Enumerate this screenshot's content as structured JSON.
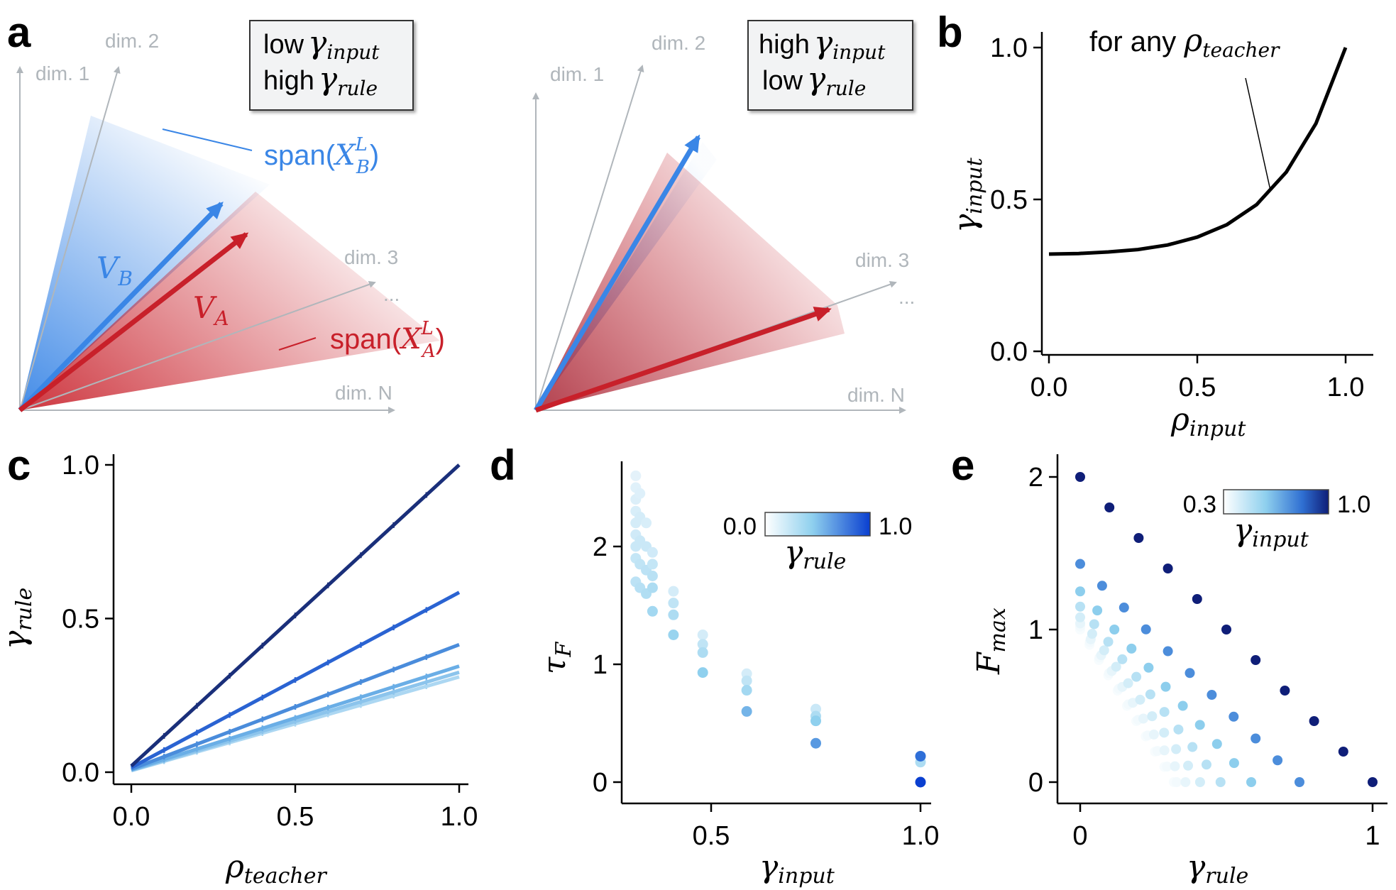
{
  "panel_a": {
    "letter": "a",
    "left_box": {
      "line1": "low",
      "line1_sym": "γ",
      "line1_sub": "input",
      "line2": "high",
      "line2_sym": "γ",
      "line2_sub": "rule"
    },
    "right_box": {
      "line1": "high",
      "line1_sym": "γ",
      "line1_sub": "input",
      "line2": "low",
      "line2_sym": "γ",
      "line2_sub": "rule"
    },
    "dims": {
      "d1": "dim. 1",
      "d2": "dim. 2",
      "d3": "dim. 3",
      "dn": "dim. N",
      "ellipsis": "..."
    },
    "vb_label": "V",
    "vb_sub": "B",
    "va_label": "V",
    "va_sub": "A",
    "span_b": {
      "pre": "span(",
      "sym": "X",
      "sup": "L",
      "sub": "B",
      "post": ")"
    },
    "span_a": {
      "pre": "span(",
      "sym": "X",
      "sup": "L",
      "sub": "A",
      "post": ")"
    },
    "colors": {
      "blue": "#3a86e6",
      "red": "#c8202a",
      "grey_axis": "#b0b6bb"
    }
  },
  "chart_data": [
    {
      "panel": "b",
      "type": "line",
      "xlabel_sym": "ρ",
      "xlabel_sub": "input",
      "ylabel_sym": "γ",
      "ylabel_sub": "input",
      "annotation_pre": "for any ",
      "annotation_sym": "ρ",
      "annotation_sub": "teacher",
      "xlim": [
        0,
        1
      ],
      "ylim": [
        0,
        1
      ],
      "xticks": [
        "0.0",
        "0.5",
        "1.0"
      ],
      "yticks": [
        "0.0",
        "0.5",
        "1.0"
      ],
      "x": [
        0.0,
        0.1,
        0.2,
        0.3,
        0.4,
        0.5,
        0.6,
        0.7,
        0.8,
        0.9,
        1.0
      ],
      "y": [
        0.32,
        0.322,
        0.327,
        0.335,
        0.35,
        0.376,
        0.417,
        0.483,
        0.59,
        0.75,
        1.0
      ],
      "color": "#000000"
    },
    {
      "panel": "c",
      "type": "line",
      "xlabel_sym": "ρ",
      "xlabel_sub": "teacher",
      "ylabel_sym": "γ",
      "ylabel_sub": "rule",
      "xlim": [
        0,
        1
      ],
      "ylim": [
        0,
        1
      ],
      "xticks": [
        "0.0",
        "0.5",
        "1.0"
      ],
      "yticks": [
        "0.0",
        "0.5",
        "1.0"
      ],
      "x": [
        0,
        1
      ],
      "series": [
        {
          "values": [
            0.02,
            1.0
          ],
          "color": "#1a2f7a"
        },
        {
          "values": [
            0.015,
            0.585
          ],
          "color": "#2a63d2"
        },
        {
          "values": [
            0.01,
            0.415
          ],
          "color": "#4a8cdb"
        },
        {
          "values": [
            0.008,
            0.345
          ],
          "color": "#6aaee6"
        },
        {
          "values": [
            0.006,
            0.325
          ],
          "color": "#8cc4ec"
        },
        {
          "values": [
            0.005,
            0.31
          ],
          "color": "#acd7f2"
        }
      ]
    },
    {
      "panel": "d",
      "type": "scatter",
      "xlabel_sym": "γ",
      "xlabel_sub": "input",
      "ylabel_sym": "τ",
      "ylabel_sub": "F",
      "xlim": [
        0.3,
        1.0
      ],
      "ylim": [
        0,
        2.6
      ],
      "xticks": [
        "0.5",
        "1.0"
      ],
      "yticks": [
        "0",
        "1",
        "2"
      ],
      "colorbar": {
        "min_label": "0.0",
        "max_label": "1.0",
        "label_sym": "γ",
        "label_sub": "rule"
      },
      "points": [
        {
          "x": 0.32,
          "y": 2.6,
          "c": 0.02
        },
        {
          "x": 0.32,
          "y": 2.5,
          "c": 0.04
        },
        {
          "x": 0.32,
          "y": 2.4,
          "c": 0.06
        },
        {
          "x": 0.32,
          "y": 2.3,
          "c": 0.08
        },
        {
          "x": 0.32,
          "y": 2.2,
          "c": 0.1
        },
        {
          "x": 0.32,
          "y": 2.1,
          "c": 0.12
        },
        {
          "x": 0.32,
          "y": 2.0,
          "c": 0.15
        },
        {
          "x": 0.32,
          "y": 1.9,
          "c": 0.18
        },
        {
          "x": 0.32,
          "y": 1.7,
          "c": 0.22
        },
        {
          "x": 0.33,
          "y": 2.45,
          "c": 0.05
        },
        {
          "x": 0.33,
          "y": 2.25,
          "c": 0.1
        },
        {
          "x": 0.33,
          "y": 2.05,
          "c": 0.15
        },
        {
          "x": 0.33,
          "y": 1.85,
          "c": 0.2
        },
        {
          "x": 0.33,
          "y": 1.65,
          "c": 0.25
        },
        {
          "x": 0.345,
          "y": 2.2,
          "c": 0.08
        },
        {
          "x": 0.345,
          "y": 2.0,
          "c": 0.15
        },
        {
          "x": 0.345,
          "y": 1.8,
          "c": 0.22
        },
        {
          "x": 0.345,
          "y": 1.6,
          "c": 0.28
        },
        {
          "x": 0.36,
          "y": 1.95,
          "c": 0.12
        },
        {
          "x": 0.36,
          "y": 1.85,
          "c": 0.18
        },
        {
          "x": 0.36,
          "y": 1.75,
          "c": 0.24
        },
        {
          "x": 0.36,
          "y": 1.65,
          "c": 0.3
        },
        {
          "x": 0.36,
          "y": 1.45,
          "c": 0.35
        },
        {
          "x": 0.41,
          "y": 1.62,
          "c": 0.1
        },
        {
          "x": 0.41,
          "y": 1.52,
          "c": 0.2
        },
        {
          "x": 0.41,
          "y": 1.42,
          "c": 0.3
        },
        {
          "x": 0.41,
          "y": 1.25,
          "c": 0.4
        },
        {
          "x": 0.48,
          "y": 1.25,
          "c": 0.1
        },
        {
          "x": 0.48,
          "y": 1.17,
          "c": 0.2
        },
        {
          "x": 0.48,
          "y": 1.1,
          "c": 0.3
        },
        {
          "x": 0.48,
          "y": 0.93,
          "c": 0.45
        },
        {
          "x": 0.585,
          "y": 0.92,
          "c": 0.1
        },
        {
          "x": 0.585,
          "y": 0.86,
          "c": 0.2
        },
        {
          "x": 0.585,
          "y": 0.78,
          "c": 0.35
        },
        {
          "x": 0.585,
          "y": 0.6,
          "c": 0.55
        },
        {
          "x": 0.75,
          "y": 0.62,
          "c": 0.15
        },
        {
          "x": 0.75,
          "y": 0.56,
          "c": 0.3
        },
        {
          "x": 0.75,
          "y": 0.52,
          "c": 0.45
        },
        {
          "x": 0.75,
          "y": 0.33,
          "c": 0.65
        },
        {
          "x": 1.0,
          "y": 0.17,
          "c": 0.3
        },
        {
          "x": 1.0,
          "y": 0.22,
          "c": 0.8
        },
        {
          "x": 1.0,
          "y": 0.0,
          "c": 1.0
        }
      ]
    },
    {
      "panel": "e",
      "type": "scatter",
      "xlabel_sym": "γ",
      "xlabel_sub": "rule",
      "ylabel_sym": "F",
      "ylabel_sub": "max",
      "xlim": [
        0,
        1
      ],
      "ylim": [
        0,
        2
      ],
      "xticks": [
        "0",
        "1"
      ],
      "yticks": [
        "0",
        "1",
        "2"
      ],
      "colorbar": {
        "min_label": "0.3",
        "max_label": "1.0",
        "label_sym": "γ",
        "label_sub": "input"
      },
      "series": [
        {
          "gamma_input": 1.0,
          "f0": 2.0
        },
        {
          "gamma_input": 0.75,
          "f0": 1.43
        },
        {
          "gamma_input": 0.585,
          "f0": 1.25
        },
        {
          "gamma_input": 0.48,
          "f0": 1.15
        },
        {
          "gamma_input": 0.41,
          "f0": 1.08
        },
        {
          "gamma_input": 0.36,
          "f0": 1.04
        },
        {
          "gamma_input": 0.33,
          "f0": 1.02
        },
        {
          "gamma_input": 0.32,
          "f0": 1.0
        }
      ]
    }
  ]
}
